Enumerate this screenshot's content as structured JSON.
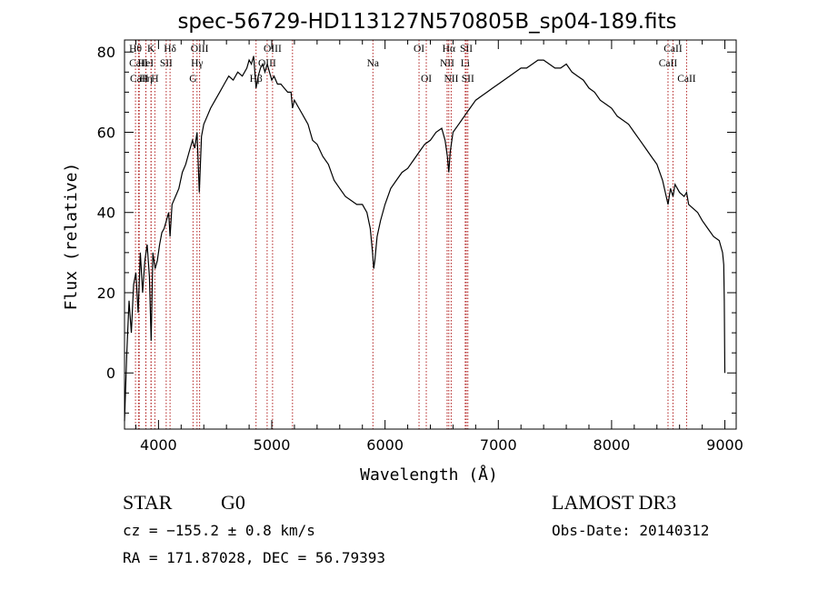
{
  "chart_data": {
    "type": "line",
    "title": "spec-56729-HD113127N570805B_sp04-189.fits",
    "xlabel": "Wavelength (Å)",
    "ylabel": "Flux (relative)",
    "xlim": [
      3700,
      9100
    ],
    "ylim": [
      -14,
      83
    ],
    "x_ticks": [
      4000,
      5000,
      6000,
      7000,
      8000,
      9000
    ],
    "y_ticks": [
      0,
      20,
      40,
      60,
      80
    ],
    "line_color": "#000000",
    "marker_color": "#b22222",
    "series": [
      {
        "x": [
          3700,
          3720,
          3740,
          3760,
          3780,
          3800,
          3820,
          3840,
          3860,
          3880,
          3900,
          3920,
          3935,
          3950,
          3970,
          3990,
          4010,
          4030,
          4050,
          4070,
          4090,
          4102,
          4120,
          4150,
          4180,
          4210,
          4240,
          4270,
          4300,
          4320,
          4340,
          4360,
          4380,
          4400,
          4430,
          4460,
          4500,
          4540,
          4580,
          4620,
          4660,
          4700,
          4740,
          4780,
          4800,
          4820,
          4840,
          4861,
          4880,
          4900,
          4920,
          4940,
          4960,
          4980,
          5000,
          5020,
          5050,
          5080,
          5110,
          5140,
          5170,
          5183,
          5200,
          5240,
          5280,
          5320,
          5360,
          5400,
          5450,
          5500,
          5550,
          5600,
          5650,
          5700,
          5750,
          5800,
          5840,
          5870,
          5890,
          5900,
          5910,
          5930,
          5960,
          6000,
          6050,
          6100,
          6150,
          6200,
          6250,
          6300,
          6350,
          6400,
          6450,
          6500,
          6530,
          6550,
          6563,
          6575,
          6600,
          6650,
          6700,
          6750,
          6800,
          6850,
          6900,
          6950,
          7000,
          7050,
          7100,
          7150,
          7200,
          7250,
          7300,
          7350,
          7400,
          7450,
          7500,
          7550,
          7600,
          7650,
          7700,
          7750,
          7800,
          7850,
          7900,
          7950,
          8000,
          8050,
          8100,
          8150,
          8200,
          8250,
          8300,
          8350,
          8400,
          8450,
          8498,
          8520,
          8542,
          8560,
          8600,
          8640,
          8662,
          8680,
          8720,
          8760,
          8800,
          8850,
          8900,
          8950,
          8980,
          8990,
          8995,
          9000
        ],
        "y": [
          -12,
          5,
          18,
          10,
          22,
          25,
          15,
          30,
          20,
          28,
          32,
          24,
          8,
          30,
          26,
          28,
          32,
          35,
          36,
          38,
          40,
          34,
          42,
          44,
          46,
          50,
          52,
          55,
          58,
          56,
          60,
          45,
          59,
          62,
          64,
          66,
          68,
          70,
          72,
          74,
          73,
          75,
          74,
          76,
          78,
          77,
          79,
          71,
          74,
          76,
          77,
          75,
          77,
          75,
          73,
          74,
          72,
          72,
          71,
          70,
          70,
          66,
          68,
          66,
          64,
          62,
          58,
          57,
          54,
          52,
          48,
          46,
          44,
          43,
          42,
          42,
          40,
          36,
          30,
          26,
          28,
          34,
          38,
          42,
          46,
          48,
          50,
          51,
          53,
          55,
          57,
          58,
          60,
          61,
          58,
          54,
          50,
          55,
          60,
          62,
          64,
          66,
          68,
          69,
          70,
          71,
          72,
          73,
          74,
          75,
          76,
          76,
          77,
          78,
          78,
          77,
          76,
          76,
          77,
          75,
          74,
          73,
          71,
          70,
          68,
          67,
          66,
          64,
          63,
          62,
          60,
          58,
          56,
          54,
          52,
          48,
          42,
          46,
          44,
          47,
          45,
          44,
          45,
          42,
          41,
          40,
          38,
          36,
          34,
          33,
          30,
          27,
          18,
          0
        ]
      }
    ],
    "line_markers": [
      {
        "label": "Hθ",
        "x": 3797,
        "row": 1
      },
      {
        "label": "CaII",
        "x": 3823,
        "row": 2
      },
      {
        "label": "CaII",
        "x": 3830,
        "row": 3
      },
      {
        "label": "K",
        "x": 3934,
        "row": 1
      },
      {
        "label": "HeI",
        "x": 3888,
        "row": 2
      },
      {
        "label": "Hη",
        "x": 3889,
        "row": 3
      },
      {
        "label": "Hδ",
        "x": 4102,
        "row": 1
      },
      {
        "label": "SII",
        "x": 4068,
        "row": 2
      },
      {
        "label": "H",
        "x": 3968,
        "row": 3
      },
      {
        "label": "OIII",
        "x": 4363,
        "row": 1
      },
      {
        "label": "Hγ",
        "x": 4340,
        "row": 2
      },
      {
        "label": "G",
        "x": 4305,
        "row": 3
      },
      {
        "label": "OIII",
        "x": 5007,
        "row": 1
      },
      {
        "label": "OIII",
        "x": 4959,
        "row": 2
      },
      {
        "label": "Hβ",
        "x": 4861,
        "row": 3
      },
      {
        "label": "Na",
        "x": 5893,
        "row": 2
      },
      {
        "label": "OI",
        "x": 6300,
        "row": 1
      },
      {
        "label": "OI",
        "x": 6364,
        "row": 3
      },
      {
        "label": "Hα",
        "x": 6563,
        "row": 1
      },
      {
        "label": "SII",
        "x": 6717,
        "row": 1
      },
      {
        "label": "NII",
        "x": 6548,
        "row": 2
      },
      {
        "label": "Li",
        "x": 6708,
        "row": 2
      },
      {
        "label": "NII",
        "x": 6584,
        "row": 3
      },
      {
        "label": "SII",
        "x": 6731,
        "row": 3
      },
      {
        "label": "CaII",
        "x": 8542,
        "row": 1
      },
      {
        "label": "CaII",
        "x": 8498,
        "row": 2
      },
      {
        "label": "CaII",
        "x": 8662,
        "row": 3
      }
    ],
    "extra_marker_lines": [
      5183,
      3935
    ]
  },
  "info": {
    "object_class": "STAR",
    "subclass": "G0",
    "survey": "LAMOST DR3",
    "cz": "cz = −155.2 ± 0.8 km/s",
    "obs_date": "Obs-Date: 20140312",
    "coords": "RA = 171.87028, DEC =  56.79393"
  }
}
